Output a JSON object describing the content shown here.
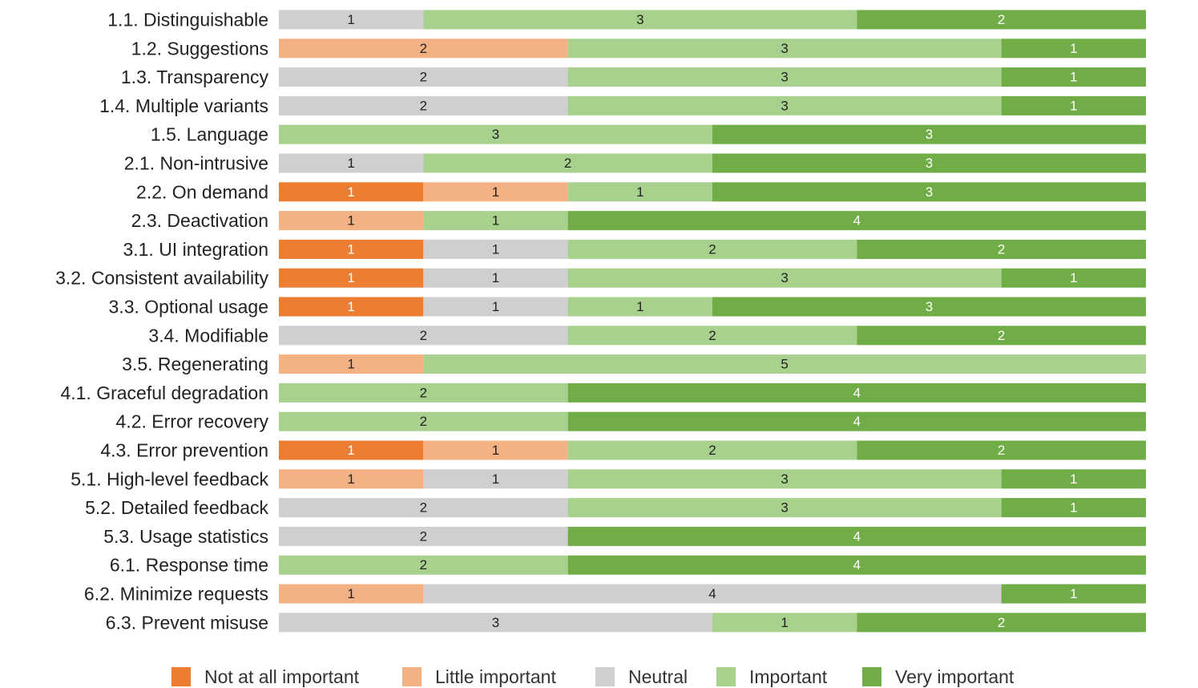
{
  "chart_data": {
    "type": "bar",
    "orientation": "horizontal",
    "stacked": true,
    "title": "",
    "xlabel": "",
    "ylabel": "",
    "xlim": [
      0,
      6
    ],
    "grid": false,
    "legend_position": "bottom",
    "categories": [
      "1.1. Distinguishable",
      "1.2. Suggestions",
      "1.3. Transparency",
      "1.4. Multiple variants",
      "1.5. Language",
      "2.1. Non-intrusive",
      "2.2. On demand",
      "2.3. Deactivation",
      "3.1. UI integration",
      "3.2. Consistent availability",
      "3.3. Optional usage",
      "3.4. Modifiable",
      "3.5. Regenerating",
      "4.1. Graceful degradation",
      "4.2. Error recovery",
      "4.3. Error prevention",
      "5.1. High-level feedback",
      "5.2. Detailed feedback",
      "5.3. Usage statistics",
      "6.1. Response time",
      "6.2. Minimize requests",
      "6.3. Prevent misuse"
    ],
    "series": [
      {
        "name": "Not at all important",
        "color": "#ED7D31",
        "label_color": "#ffffff",
        "values": [
          0,
          0,
          0,
          0,
          0,
          0,
          1,
          0,
          1,
          1,
          1,
          0,
          0,
          0,
          0,
          1,
          0,
          0,
          0,
          0,
          0,
          0
        ]
      },
      {
        "name": "Little important",
        "color": "#F4B183",
        "label_color": "#222222",
        "values": [
          0,
          2,
          0,
          0,
          0,
          0,
          1,
          1,
          0,
          0,
          0,
          0,
          1,
          0,
          0,
          1,
          1,
          0,
          0,
          0,
          1,
          0
        ]
      },
      {
        "name": "Neutral",
        "color": "#D0CECE",
        "label_color": "#222222",
        "values": [
          1,
          0,
          2,
          2,
          0,
          1,
          0,
          0,
          1,
          1,
          1,
          2,
          0,
          0,
          0,
          0,
          1,
          2,
          2,
          0,
          4,
          3
        ]
      },
      {
        "name": "Important",
        "color": "#A9D18E",
        "label_color": "#222222",
        "values": [
          3,
          3,
          3,
          3,
          3,
          2,
          1,
          1,
          2,
          3,
          1,
          2,
          5,
          2,
          2,
          2,
          3,
          3,
          0,
          2,
          0,
          1
        ]
      },
      {
        "name": "Very important",
        "color": "#70AD47",
        "label_color": "#ffffff",
        "values": [
          2,
          1,
          1,
          1,
          3,
          3,
          3,
          4,
          2,
          1,
          3,
          2,
          0,
          4,
          4,
          2,
          1,
          1,
          4,
          4,
          1,
          2
        ]
      }
    ]
  }
}
